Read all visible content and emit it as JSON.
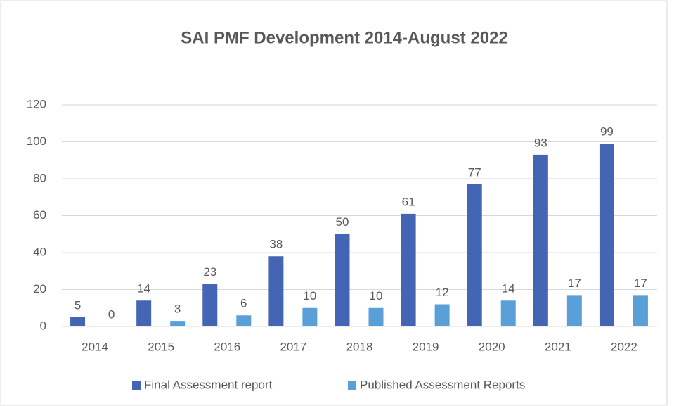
{
  "chart_data": {
    "type": "bar",
    "title": "SAI PMF Development 2014-August 2022",
    "categories": [
      "2014",
      "2015",
      "2016",
      "2017",
      "2018",
      "2019",
      "2020",
      "2021",
      "2022"
    ],
    "series": [
      {
        "name": "Final Assessment report",
        "color": "#4464b4",
        "values": [
          5,
          14,
          23,
          38,
          50,
          61,
          77,
          93,
          99
        ]
      },
      {
        "name": "Published Assessment Reports",
        "color": "#5b9fd8",
        "values": [
          0,
          3,
          6,
          10,
          10,
          12,
          14,
          17,
          17
        ]
      }
    ],
    "ylim": [
      0,
      120
    ],
    "yticks": [
      0,
      20,
      40,
      60,
      80,
      100,
      120
    ],
    "grid": true,
    "legend": "bottom"
  }
}
